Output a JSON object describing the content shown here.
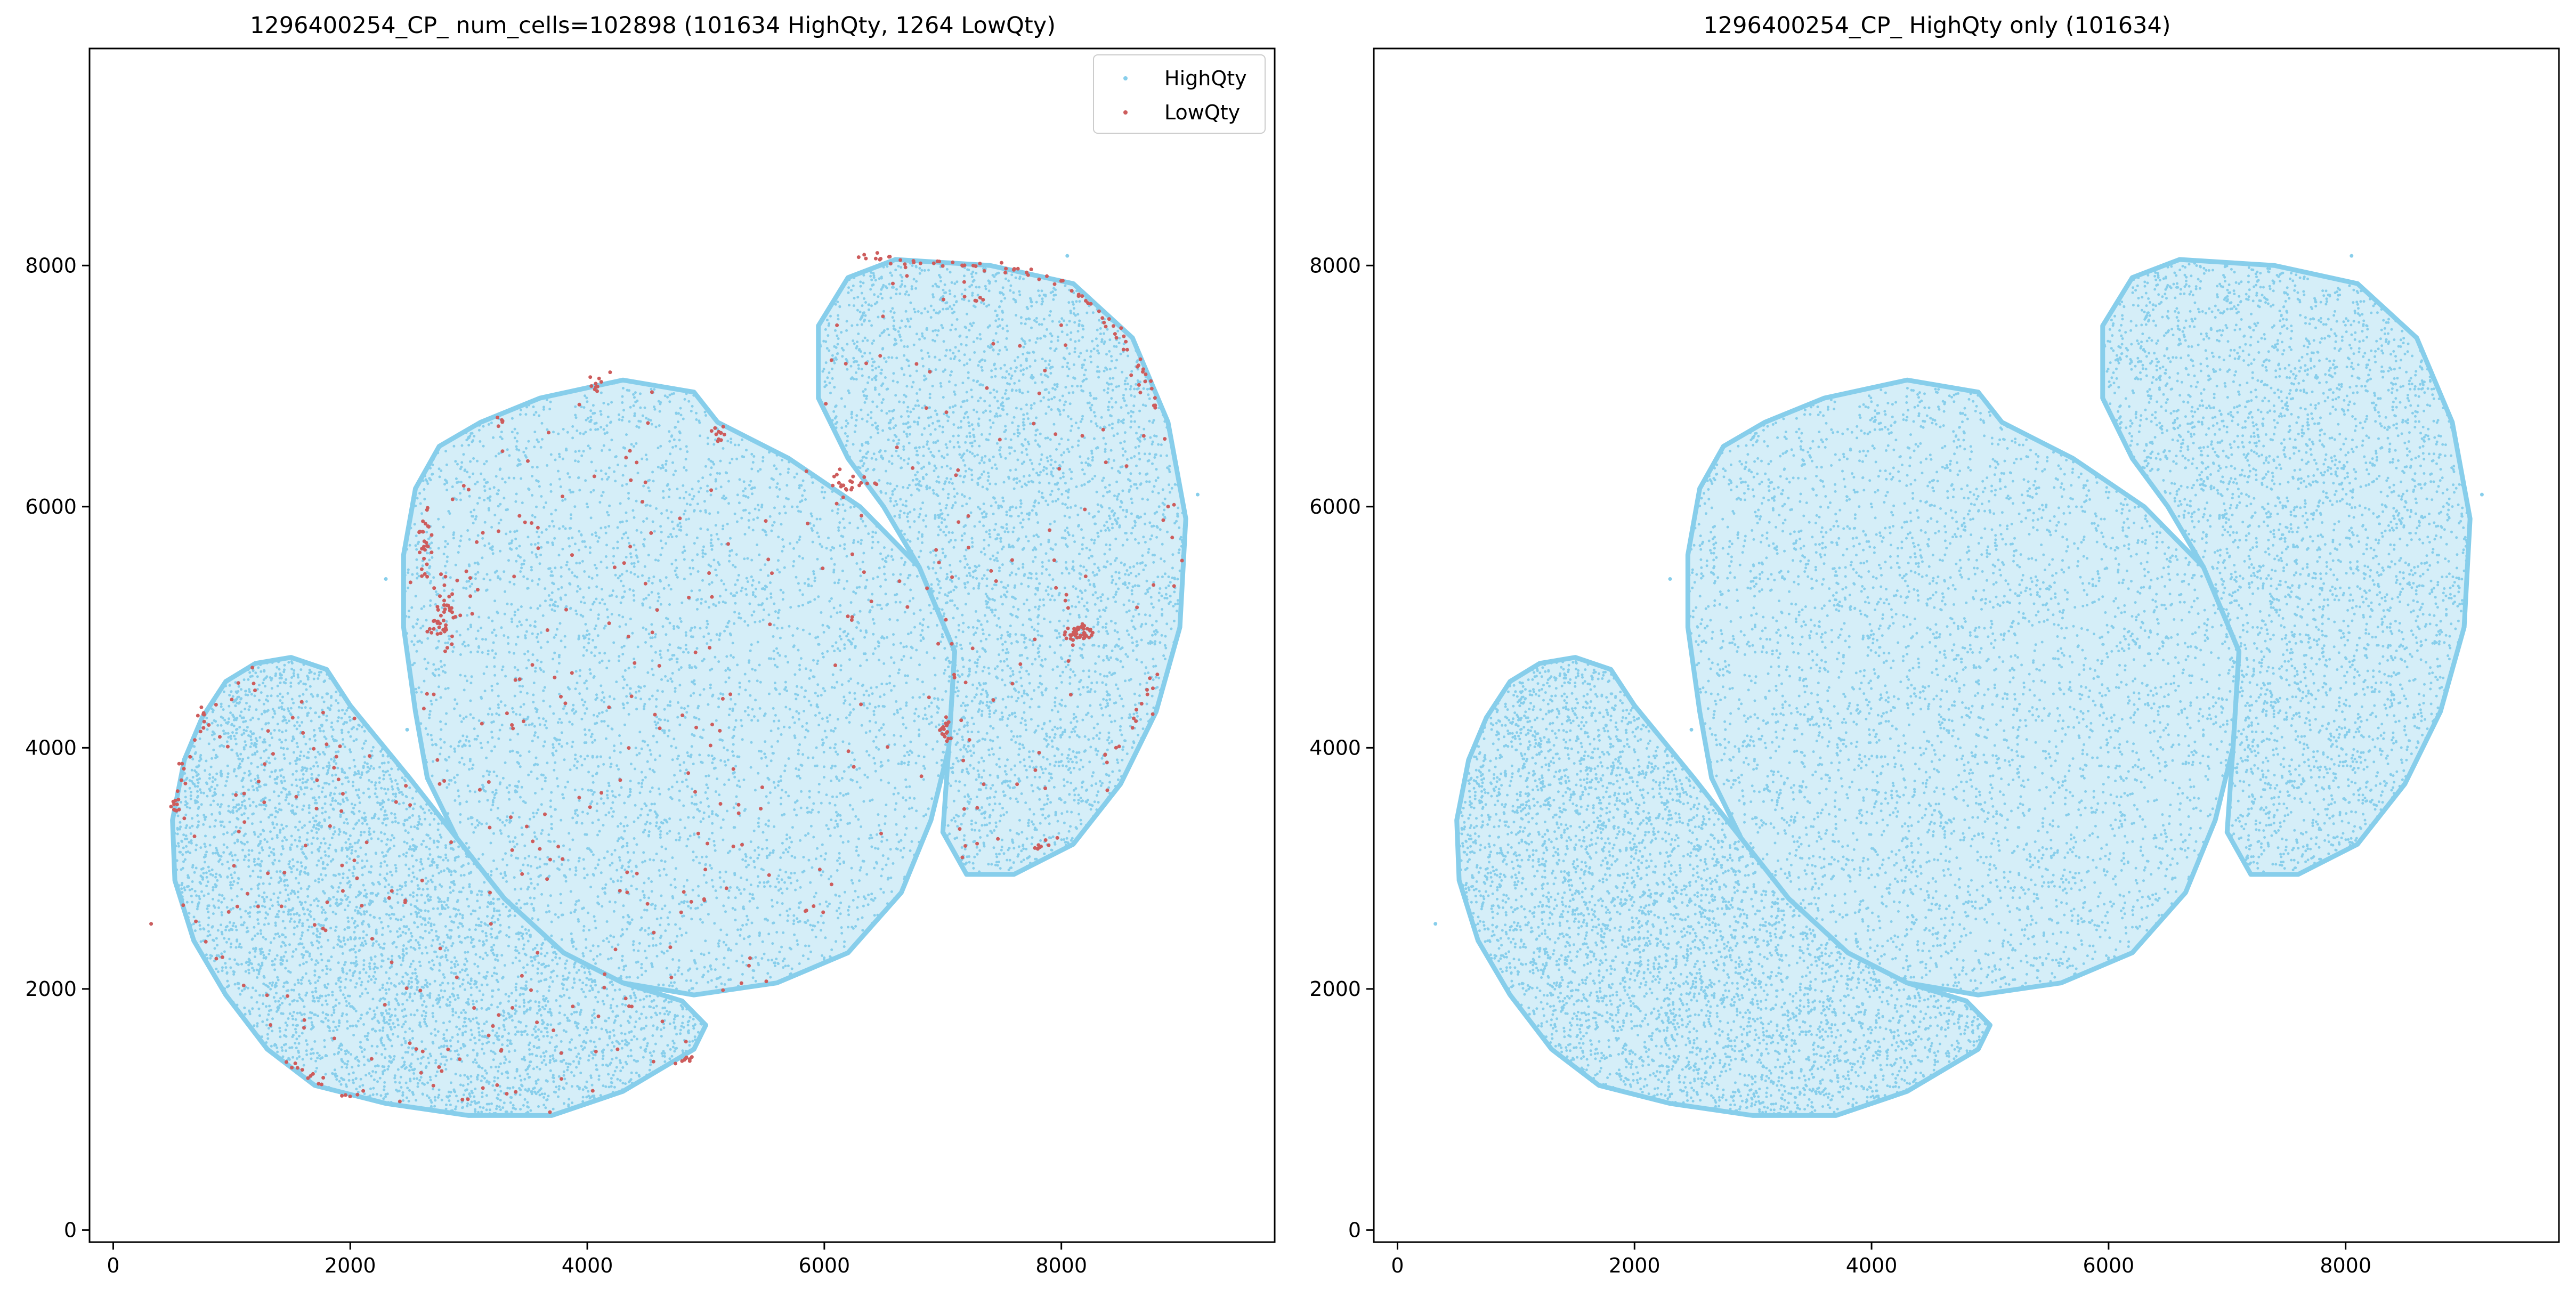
{
  "chart_data": [
    {
      "type": "scatter",
      "title": "1296400254_CP_ num_cells=102898 (101634 HighQty, 1264 LowQty)",
      "xlabel": "",
      "ylabel": "",
      "xlim": [
        -200,
        9800
      ],
      "ylim": [
        -100,
        9800
      ],
      "xticks": [
        "0",
        "2000",
        "4000",
        "6000",
        "8000"
      ],
      "yticks": [
        "0",
        "2000",
        "4000",
        "6000",
        "8000"
      ],
      "grid": false,
      "legend": {
        "placement": "top-right",
        "entries": [
          "HighQty",
          "LowQty"
        ]
      },
      "series": [
        {
          "name": "HighQty",
          "color": "#87ceeb",
          "count": 101634,
          "regions": [
            {
              "label": "left lobe",
              "outline": [
                [
                  1500,
                  4750
                ],
                [
                  1200,
                  4700
                ],
                [
                  950,
                  4550
                ],
                [
                  750,
                  4250
                ],
                [
                  600,
                  3900
                ],
                [
                  500,
                  3400
                ],
                [
                  520,
                  2900
                ],
                [
                  680,
                  2400
                ],
                [
                  950,
                  1950
                ],
                [
                  1300,
                  1500
                ],
                [
                  1700,
                  1200
                ],
                [
                  2300,
                  1050
                ],
                [
                  3000,
                  950
                ],
                [
                  3700,
                  950
                ],
                [
                  4300,
                  1150
                ],
                [
                  4900,
                  1500
                ],
                [
                  5000,
                  1700
                ],
                [
                  4800,
                  1900
                ],
                [
                  4300,
                  2050
                ],
                [
                  3800,
                  2300
                ],
                [
                  3300,
                  2750
                ],
                [
                  2900,
                  3250
                ],
                [
                  2500,
                  3750
                ],
                [
                  2000,
                  4350
                ],
                [
                  1800,
                  4650
                ]
              ]
            },
            {
              "label": "center lobe",
              "outline": [
                [
                  2550,
                  6150
                ],
                [
                  2750,
                  6500
                ],
                [
                  3100,
                  6700
                ],
                [
                  3600,
                  6900
                ],
                [
                  4300,
                  7050
                ],
                [
                  4900,
                  6950
                ],
                [
                  5100,
                  6700
                ],
                [
                  5700,
                  6400
                ],
                [
                  6300,
                  6000
                ],
                [
                  6800,
                  5500
                ],
                [
                  7100,
                  4800
                ],
                [
                  7050,
                  4000
                ],
                [
                  6900,
                  3400
                ],
                [
                  6650,
                  2800
                ],
                [
                  6200,
                  2300
                ],
                [
                  5600,
                  2050
                ],
                [
                  4900,
                  1950
                ],
                [
                  4300,
                  2050
                ],
                [
                  3800,
                  2300
                ],
                [
                  3300,
                  2750
                ],
                [
                  2900,
                  3250
                ],
                [
                  2650,
                  3750
                ],
                [
                  2550,
                  4300
                ],
                [
                  2450,
                  5000
                ],
                [
                  2450,
                  5600
                ]
              ]
            },
            {
              "label": "right lobe",
              "outline": [
                [
                  5950,
                  7500
                ],
                [
                  6200,
                  7900
                ],
                [
                  6600,
                  8050
                ],
                [
                  7400,
                  8000
                ],
                [
                  8100,
                  7850
                ],
                [
                  8600,
                  7400
                ],
                [
                  8900,
                  6700
                ],
                [
                  9050,
                  5900
                ],
                [
                  9000,
                  5000
                ],
                [
                  8800,
                  4300
                ],
                [
                  8500,
                  3700
                ],
                [
                  8100,
                  3200
                ],
                [
                  7600,
                  2950
                ],
                [
                  7200,
                  2950
                ],
                [
                  7000,
                  3300
                ],
                [
                  7050,
                  4000
                ],
                [
                  7100,
                  4800
                ],
                [
                  6800,
                  5500
                ],
                [
                  6500,
                  6000
                ],
                [
                  6200,
                  6400
                ],
                [
                  5950,
                  6900
                ]
              ]
            }
          ],
          "isolated_points": [
            [
              320,
              2540
            ],
            [
              8050,
              8080
            ],
            [
              2480,
              4150
            ],
            [
              2300,
              5400
            ],
            [
              9150,
              6100
            ]
          ]
        },
        {
          "name": "LowQty",
          "color": "#cd5c5c",
          "count": 1264,
          "clusters": [
            {
              "center": [
                2780,
                5100
              ],
              "spread": [
                100,
                220
              ],
              "n": 45
            },
            {
              "center": [
                2620,
                5700
              ],
              "spread": [
                50,
                220
              ],
              "n": 25
            },
            {
              "center": [
                8150,
                4950
              ],
              "spread": [
                90,
                60
              ],
              "n": 40
            },
            {
              "center": [
                7030,
                4150
              ],
              "spread": [
                40,
                90
              ],
              "n": 18
            },
            {
              "center": [
                6250,
                6200
              ],
              "spread": [
                170,
                80
              ],
              "n": 22
            },
            {
              "center": [
                5100,
                6600
              ],
              "spread": [
                80,
                60
              ],
              "n": 10
            },
            {
              "center": [
                4100,
                7000
              ],
              "spread": [
                80,
                80
              ],
              "n": 10
            },
            {
              "center": [
                3250,
                6720
              ],
              "spread": [
                40,
                40
              ],
              "n": 5
            },
            {
              "center": [
                4820,
                1420
              ],
              "spread": [
                60,
                50
              ],
              "n": 8
            },
            {
              "center": [
                530,
                3550
              ],
              "spread": [
                30,
                90
              ],
              "n": 8
            },
            {
              "center": [
                7820,
                3200
              ],
              "spread": [
                60,
                40
              ],
              "n": 6
            }
          ],
          "edge_arcs": [
            {
              "points": [
                [
                  6300,
                  8050
                ],
                [
                  6900,
                  8020
                ],
                [
                  7500,
                  8000
                ],
                [
                  8000,
                  7850
                ],
                [
                  8400,
                  7550
                ],
                [
                  8700,
                  7100
                ],
                [
                  8900,
                  6600
                ]
              ],
              "n": 70
            },
            {
              "points": [
                [
                  900,
                  4500
                ],
                [
                  750,
                  4250
                ],
                [
                  600,
                  3900
                ],
                [
                  520,
                  3500
                ]
              ],
              "n": 18
            },
            {
              "points": [
                [
                  1400,
                  1450
                ],
                [
                  1900,
                  1150
                ],
                [
                  2500,
                  1050
                ]
              ],
              "n": 12
            },
            {
              "points": [
                [
                  8300,
                  3800
                ],
                [
                  8600,
                  4200
                ],
                [
                  8850,
                  4700
                ]
              ],
              "n": 14
            }
          ],
          "isolated_points": [
            [
              320,
              2540
            ],
            [
              2180,
              1420
            ],
            [
              1000,
              4400
            ]
          ],
          "scattered_within_regions": 420
        }
      ]
    },
    {
      "type": "scatter",
      "title": "1296400254_CP_ HighQty only (101634)",
      "xlabel": "",
      "ylabel": "",
      "xlim": [
        -200,
        9800
      ],
      "ylim": [
        -100,
        9800
      ],
      "xticks": [
        "0",
        "2000",
        "4000",
        "6000",
        "8000"
      ],
      "yticks": [
        "0",
        "2000",
        "4000",
        "6000",
        "8000"
      ],
      "grid": false,
      "series": [
        {
          "name": "HighQty",
          "color": "#87ceeb",
          "count": 101634,
          "same_as_left_panel": true
        }
      ]
    }
  ]
}
